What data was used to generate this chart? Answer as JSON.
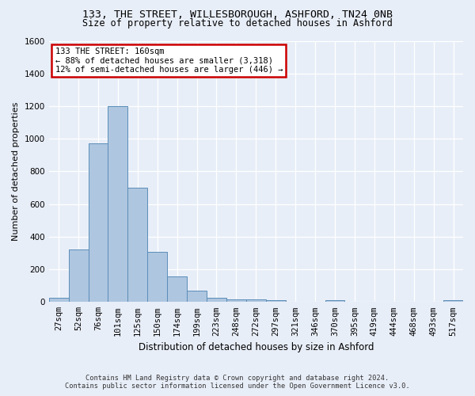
{
  "title_line1": "133, THE STREET, WILLESBOROUGH, ASHFORD, TN24 0NB",
  "title_line2": "Size of property relative to detached houses in Ashford",
  "xlabel": "Distribution of detached houses by size in Ashford",
  "ylabel": "Number of detached properties",
  "footer_line1": "Contains HM Land Registry data © Crown copyright and database right 2024.",
  "footer_line2": "Contains public sector information licensed under the Open Government Licence v3.0.",
  "annotation_line1": "133 THE STREET: 160sqm",
  "annotation_line2": "← 88% of detached houses are smaller (3,318)",
  "annotation_line3": "12% of semi-detached houses are larger (446) →",
  "bar_color": "#aec6e0",
  "bar_edge_color": "#5b8db8",
  "annotation_box_color": "#ffffff",
  "annotation_box_edge_color": "#cc0000",
  "background_color": "#e8eef8",
  "grid_color": "#ffffff",
  "categories": [
    "27sqm",
    "52sqm",
    "76sqm",
    "101sqm",
    "125sqm",
    "150sqm",
    "174sqm",
    "199sqm",
    "223sqm",
    "248sqm",
    "272sqm",
    "297sqm",
    "321sqm",
    "346sqm",
    "370sqm",
    "395sqm",
    "419sqm",
    "444sqm",
    "468sqm",
    "493sqm",
    "517sqm"
  ],
  "values": [
    28,
    320,
    970,
    1200,
    700,
    305,
    155,
    70,
    28,
    18,
    15,
    10,
    0,
    0,
    12,
    0,
    0,
    0,
    0,
    0,
    12
  ],
  "ylim": [
    0,
    1600
  ],
  "yticks": [
    0,
    200,
    400,
    600,
    800,
    1000,
    1200,
    1400,
    1600
  ],
  "title_fontsize": 9.5,
  "subtitle_fontsize": 8.5,
  "xlabel_fontsize": 8.5,
  "ylabel_fontsize": 8,
  "tick_fontsize": 7.5,
  "annot_fontsize": 7.5,
  "footer_fontsize": 6.2
}
